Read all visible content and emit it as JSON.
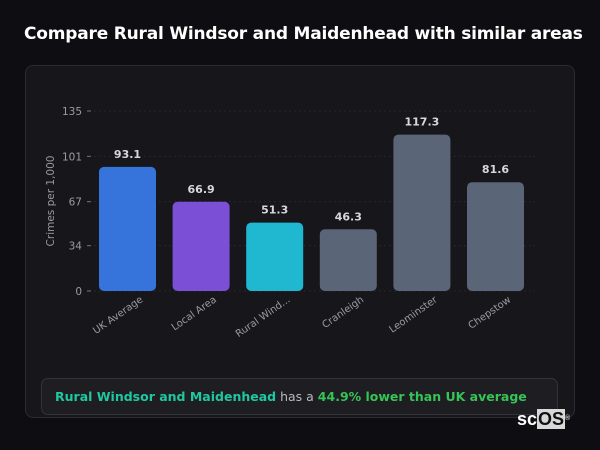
{
  "title": "Compare Rural Windsor and Maidenhead with similar areas",
  "chart_data": {
    "type": "bar",
    "ylabel": "Crimes per 1,000",
    "xlabel": "",
    "ylim": [
      0,
      135
    ],
    "yticks": [
      0,
      34,
      67,
      101,
      135
    ],
    "grid": true,
    "categories": [
      "UK Average",
      "Local Area",
      "Rural Wind...",
      "Cranleigh",
      "Leominster",
      "Chepstow"
    ],
    "values": [
      93.1,
      66.9,
      51.3,
      46.3,
      117.3,
      81.6
    ],
    "data_labels": [
      "93.1",
      "66.9",
      "51.3",
      "46.3",
      "117.3",
      "81.6"
    ],
    "colors": [
      "#3674dc",
      "#7b4fd6",
      "#1fb8d0",
      "#5a6578",
      "#5a6578",
      "#5a6578"
    ]
  },
  "summary": {
    "area": "Rural Windsor and Maidenhead",
    "connector": " has a ",
    "comparison": "44.9% lower than UK average"
  },
  "logo": {
    "text1": "sc",
    "text2": "OS",
    "mark": "®"
  }
}
